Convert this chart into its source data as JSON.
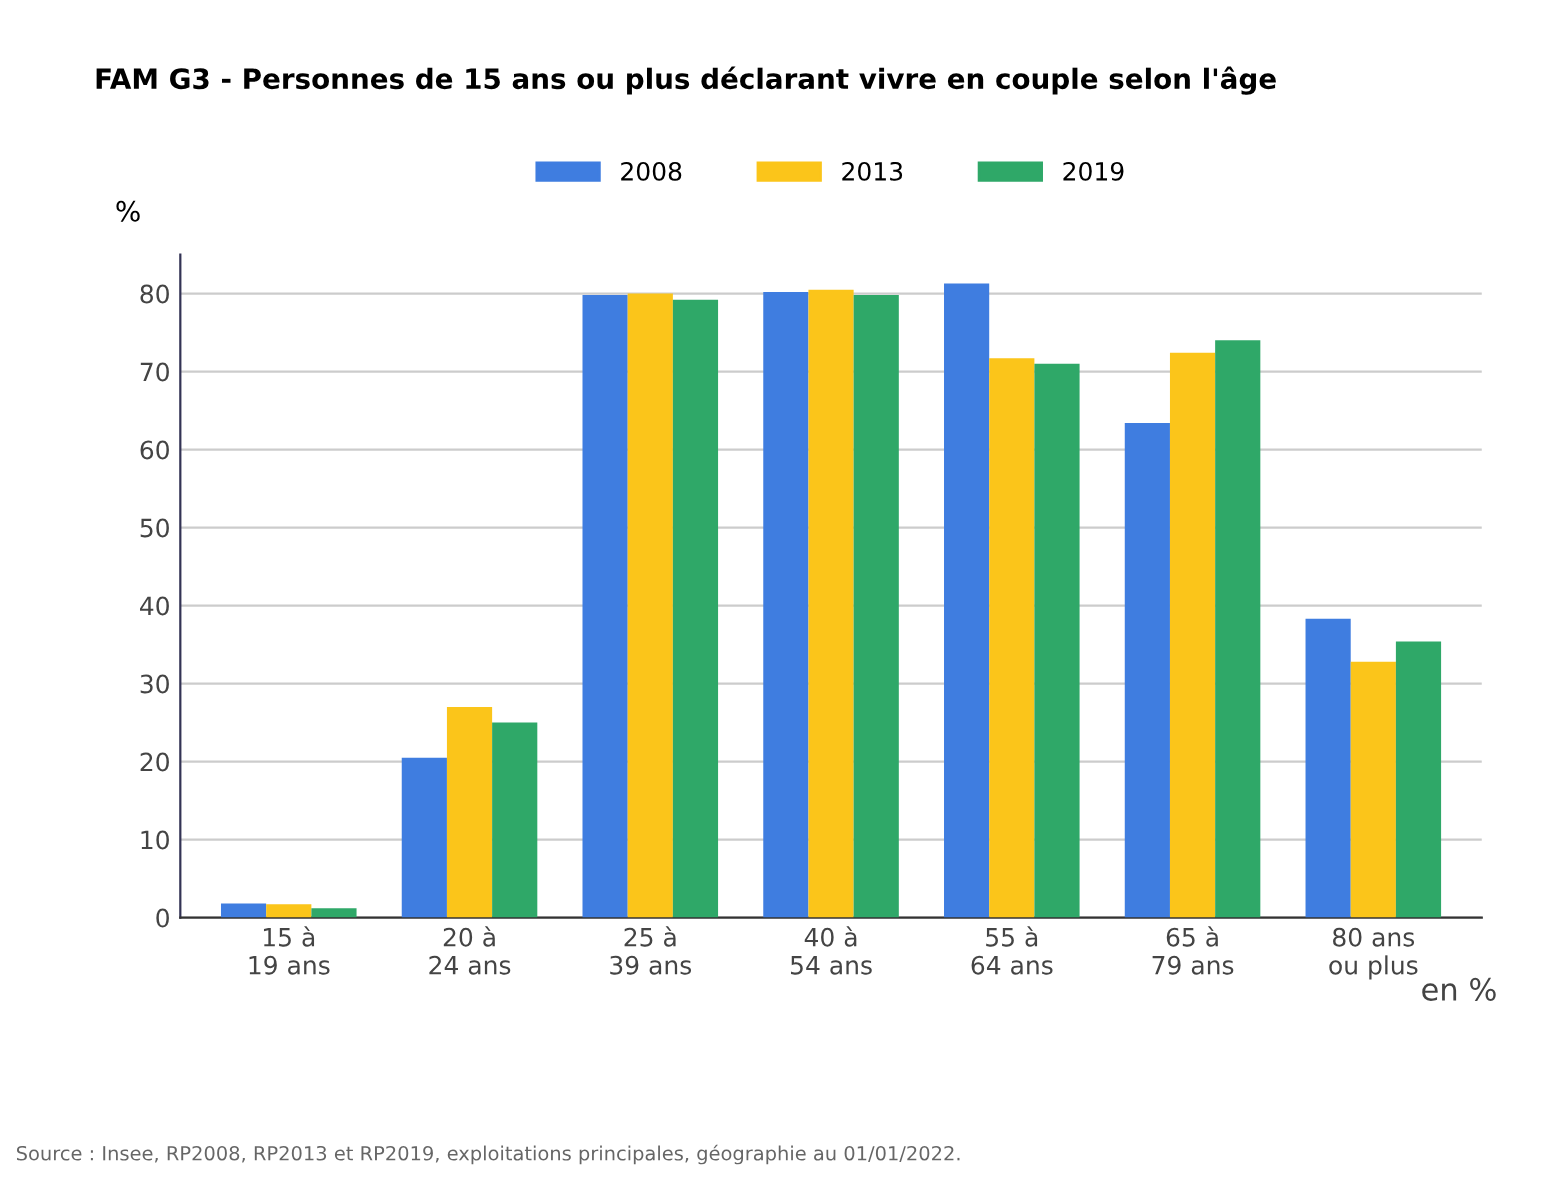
{
  "chart_data": {
    "type": "bar",
    "title": "FAM G3 - Personnes de 15 ans ou plus déclarant vivre en couple selon l'âge",
    "ylabel": "%",
    "categories": [
      "15 à\n19 ans",
      "20 à\n24 ans",
      "25 à\n39 ans",
      "40 à\n54 ans",
      "55 à\n64 ans",
      "65 à\n79 ans",
      "80 ans\nou plus"
    ],
    "series": [
      {
        "name": "2008",
        "color": "#3f7de0",
        "values": [
          1.8,
          20.5,
          79.8,
          80.2,
          81.3,
          63.4,
          38.3
        ]
      },
      {
        "name": "2013",
        "color": "#fbc51a",
        "values": [
          1.7,
          27,
          80,
          80.5,
          71.7,
          72.4,
          32.8
        ]
      },
      {
        "name": "2019",
        "color": "#2fa868",
        "values": [
          1.2,
          25,
          79.2,
          79.8,
          71,
          74,
          35.4
        ]
      }
    ],
    "ylim": [
      0,
      85
    ],
    "yticks": [
      0,
      10,
      20,
      30,
      40,
      50,
      60,
      70,
      80
    ],
    "grid": "y",
    "legend": "top",
    "annotations": [
      "en %",
      "Source : Insee, RP2008, RP2013 et RP2019, exploitations principales, géographie au 01/01/2022."
    ]
  }
}
